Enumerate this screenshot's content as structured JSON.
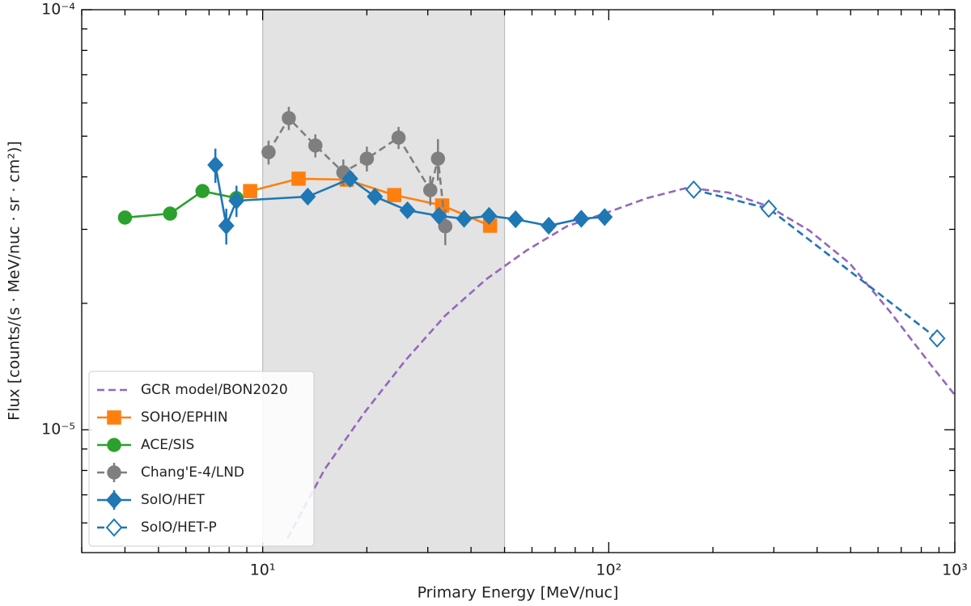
{
  "chart_data": {
    "type": "line",
    "xlabel": "Primary Energy [MeV/nuc]",
    "ylabel": "Flux [counts/(s · MeV/nuc · sr · cm²)]",
    "xscale": "log",
    "yscale": "log",
    "xlim": [
      3.0,
      1000
    ],
    "ylim": [
      5.1e-06,
      0.0001
    ],
    "xticks": [
      {
        "value": 10,
        "label": "10¹"
      },
      {
        "value": 100,
        "label": "10²"
      },
      {
        "value": 1000,
        "label": "10³"
      }
    ],
    "yticks": [
      {
        "value": 1e-05,
        "label": "10⁻⁵"
      },
      {
        "value": 0.0001,
        "label": "10⁻⁴"
      }
    ],
    "xminor_ticks": [
      3,
      4,
      5,
      6,
      7,
      8,
      9,
      20,
      30,
      40,
      50,
      60,
      70,
      80,
      90,
      200,
      300,
      400,
      500,
      600,
      700,
      800,
      900
    ],
    "yminor_ticks": [
      6e-06,
      7e-06,
      8e-06,
      9e-06,
      2e-05,
      3e-05,
      4e-05,
      5e-05,
      6e-05,
      7e-05,
      8e-05,
      9e-05
    ],
    "shaded_region": [
      10,
      50
    ],
    "legend": "lower left",
    "series": [
      {
        "name": "GCR model/BON2020",
        "color": "#9467bd",
        "linestyle": "dashed",
        "marker": "none",
        "x": [
          11.8,
          15.1,
          19.7,
          25.8,
          33.7,
          44.2,
          57.8,
          75.7,
          100,
          129,
          169,
          222,
          290,
          380,
          497,
          650,
          851,
          1000
        ],
        "values": [
          5.52e-06,
          8.05e-06,
          1.1e-05,
          1.46e-05,
          1.87e-05,
          2.28e-05,
          2.67e-05,
          3.05e-05,
          3.3e-05,
          3.56e-05,
          3.77e-05,
          3.67e-05,
          3.4e-05,
          2.98e-05,
          2.49e-05,
          1.91e-05,
          1.43e-05,
          1.21e-05
        ]
      },
      {
        "name": "SOHO/EPHIN",
        "color": "#ff7f0e",
        "linestyle": "solid",
        "marker": "square",
        "x": [
          9.2,
          12.7,
          17.5,
          24.0,
          33.0,
          45.4
        ],
        "values": [
          3.7e-05,
          3.96e-05,
          3.94e-05,
          3.62e-05,
          3.42e-05,
          3.06e-05
        ]
      },
      {
        "name": "ACE/SIS",
        "color": "#2ca02c",
        "linestyle": "solid",
        "marker": "circle",
        "x": [
          4.0,
          5.4,
          6.7,
          8.4
        ],
        "values": [
          3.2e-05,
          3.27e-05,
          3.7e-05,
          3.56e-05
        ]
      },
      {
        "name": "Chang'E-4/LND",
        "color": "#7f7f7f",
        "linestyle": "dashed",
        "marker": "circle",
        "x": [
          10.4,
          11.9,
          14.2,
          17.1,
          20.0,
          24.7,
          30.5,
          32.1,
          33.7
        ],
        "values": [
          4.58e-05,
          5.52e-05,
          4.75e-05,
          4.1e-05,
          4.42e-05,
          4.96e-05,
          3.72e-05,
          4.42e-05,
          3.05e-05
        ],
        "errors": [
          3e-06,
          3.5e-06,
          3e-06,
          3e-06,
          3e-06,
          3e-06,
          3e-06,
          5e-06,
          3e-06
        ]
      },
      {
        "name": "SolO/HET",
        "color": "#1f77b4",
        "linestyle": "solid",
        "marker": "diamond",
        "x": [
          7.3,
          7.85,
          8.4,
          13.5,
          17.9,
          21.1,
          26.2,
          32.3,
          38.2,
          45.1,
          53.8,
          67.1,
          83.3,
          97.3
        ],
        "values": [
          4.27e-05,
          3.06e-05,
          3.51e-05,
          3.59e-05,
          3.96e-05,
          3.59e-05,
          3.33e-05,
          3.23e-05,
          3.18e-05,
          3.23e-05,
          3.17e-05,
          3.06e-05,
          3.18e-05,
          3.21e-05
        ],
        "errors": [
          4e-06,
          3e-06,
          3e-06,
          5e-07,
          5e-07,
          5e-07,
          5e-07,
          5e-07,
          5e-07,
          5e-07,
          5e-07,
          5e-07,
          5e-07,
          5e-07
        ]
      },
      {
        "name": "SolO/HET-P",
        "color": "#1f77b4",
        "linestyle": "dashed",
        "marker": "open-diamond",
        "x": [
          176,
          290,
          889
        ],
        "values": [
          3.73e-05,
          3.36e-05,
          1.65e-05
        ]
      }
    ]
  }
}
